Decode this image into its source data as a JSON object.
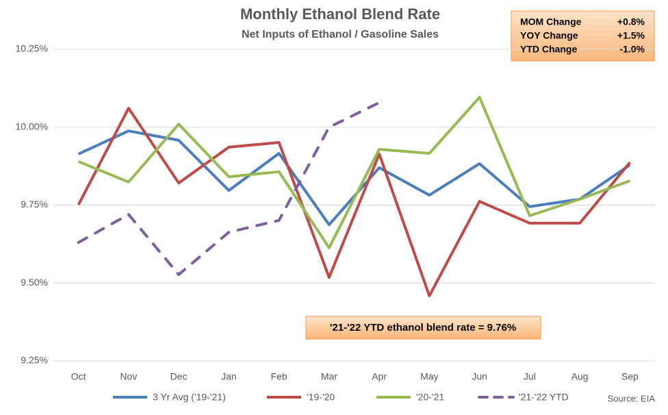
{
  "chart_data": {
    "type": "line",
    "title": "Monthly Ethanol Blend Rate",
    "subtitle": "Net Inputs of Ethanol / Gasoline Sales",
    "categories": [
      "Oct",
      "Nov",
      "Dec",
      "Jan",
      "Feb",
      "Mar",
      "Apr",
      "May",
      "Jun",
      "Jul",
      "Aug",
      "Sep"
    ],
    "series": [
      {
        "name": "3 Yr Avg ('19-'21)",
        "color": "#4a7ebb",
        "dashed": false,
        "values": [
          9.914,
          9.988,
          9.958,
          9.797,
          9.916,
          9.687,
          9.87,
          9.782,
          9.883,
          9.745,
          9.769,
          9.879
        ]
      },
      {
        "name": "'19-'20",
        "color": "#be4b48",
        "dashed": false,
        "values": [
          9.751,
          10.061,
          9.821,
          9.936,
          9.951,
          9.518,
          9.914,
          9.459,
          9.762,
          9.692,
          9.692,
          9.887
        ]
      },
      {
        "name": "'20-'21",
        "color": "#98b954",
        "dashed": false,
        "values": [
          9.89,
          9.824,
          10.01,
          9.841,
          9.857,
          9.613,
          9.929,
          9.916,
          10.096,
          9.716,
          9.769,
          9.828
        ]
      },
      {
        "name": "'21-'22 YTD",
        "color": "#7d5fa0",
        "dashed": true,
        "values": [
          9.63,
          9.72,
          9.527,
          9.663,
          9.701,
          10.0,
          10.079,
          null,
          null,
          null,
          null,
          null
        ]
      }
    ],
    "ylim": [
      9.25,
      10.25
    ],
    "yticks": [
      {
        "value": 9.25,
        "label": "9.25%"
      },
      {
        "value": 9.5,
        "label": "9.50%"
      },
      {
        "value": 9.75,
        "label": "9.75%"
      },
      {
        "value": 10.0,
        "label": "10.00%"
      },
      {
        "value": 10.25,
        "label": "10.25%"
      }
    ],
    "grid": true,
    "legend": "bottom",
    "info_box": [
      [
        "MOM Change",
        "+0.8%"
      ],
      [
        "YOY Change",
        "+1.5%"
      ],
      [
        "YTD Change",
        "-1.0%"
      ]
    ],
    "annotation": "'21-'22 YTD ethanol blend rate = 9.76%",
    "source": "Source: EIA"
  }
}
